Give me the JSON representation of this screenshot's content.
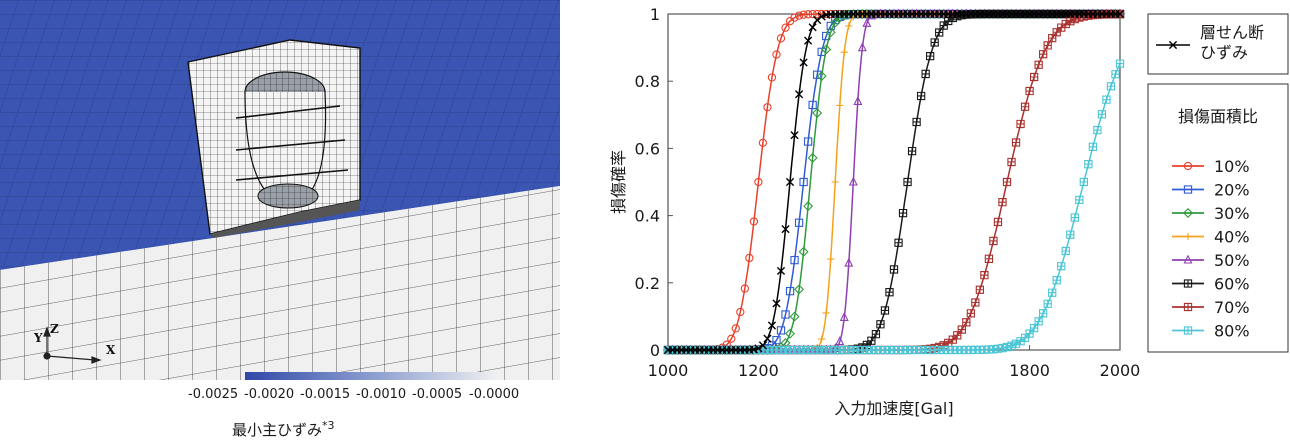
{
  "left_panel": {
    "axes_labels": {
      "x": "X",
      "y": "Y",
      "z": "Z"
    },
    "colorbar": {
      "ticks": [
        "-0.0025",
        "-0.0020",
        "-0.0015",
        "-0.0010",
        "-0.0005",
        "-0.0000"
      ],
      "label": "最小主ひずみ",
      "footnote_mark": "*3",
      "colors": {
        "low": "#3048a8",
        "high": "#f2f2f2"
      }
    }
  },
  "chart_data": {
    "type": "line",
    "xlabel": "入力加速度[Gal]",
    "ylabel": "損傷確率",
    "xlim": [
      1000,
      2000
    ],
    "ylim": [
      0,
      1
    ],
    "xticks": [
      1000,
      1200,
      1400,
      1600,
      1800,
      2000
    ],
    "yticks": [
      0,
      0.2,
      0.4,
      0.6,
      0.8,
      1
    ],
    "grid": false,
    "legend": {
      "placement": "right",
      "shear_entry": {
        "label_lines": [
          "層せん断",
          "ひずみ"
        ],
        "marker": "x",
        "color": "#000000"
      },
      "title": "損傷面積比"
    },
    "curve_model": "cumulative normal",
    "series": [
      {
        "name": "10%",
        "median": 1200,
        "beta": 0.028,
        "color": "#e8412b",
        "marker": "circle"
      },
      {
        "name": "20%",
        "median": 1300,
        "beta": 0.025,
        "color": "#2f5bd4",
        "marker": "square"
      },
      {
        "name": "30%",
        "median": 1315,
        "beta": 0.021,
        "color": "#2e9a3c",
        "marker": "diamond"
      },
      {
        "name": "40%",
        "median": 1370,
        "beta": 0.012,
        "color": "#f4a11c",
        "marker": "plus"
      },
      {
        "name": "50%",
        "median": 1410,
        "beta": 0.011,
        "color": "#8e3fb0",
        "marker": "triangle"
      },
      {
        "name": "60%",
        "median": 1530,
        "beta": 0.028,
        "color": "#1a1a1a",
        "marker": "square-plus"
      },
      {
        "name": "70%",
        "median": 1750,
        "beta": 0.038,
        "color": "#a8312e",
        "marker": "square-plus"
      },
      {
        "name": "80%",
        "median": 1920,
        "beta": 0.039,
        "color": "#4cc6d6",
        "marker": "square-plus"
      }
    ],
    "shear_strain_series": {
      "median": 1270,
      "beta": 0.022,
      "color": "#000000",
      "marker": "x"
    }
  }
}
